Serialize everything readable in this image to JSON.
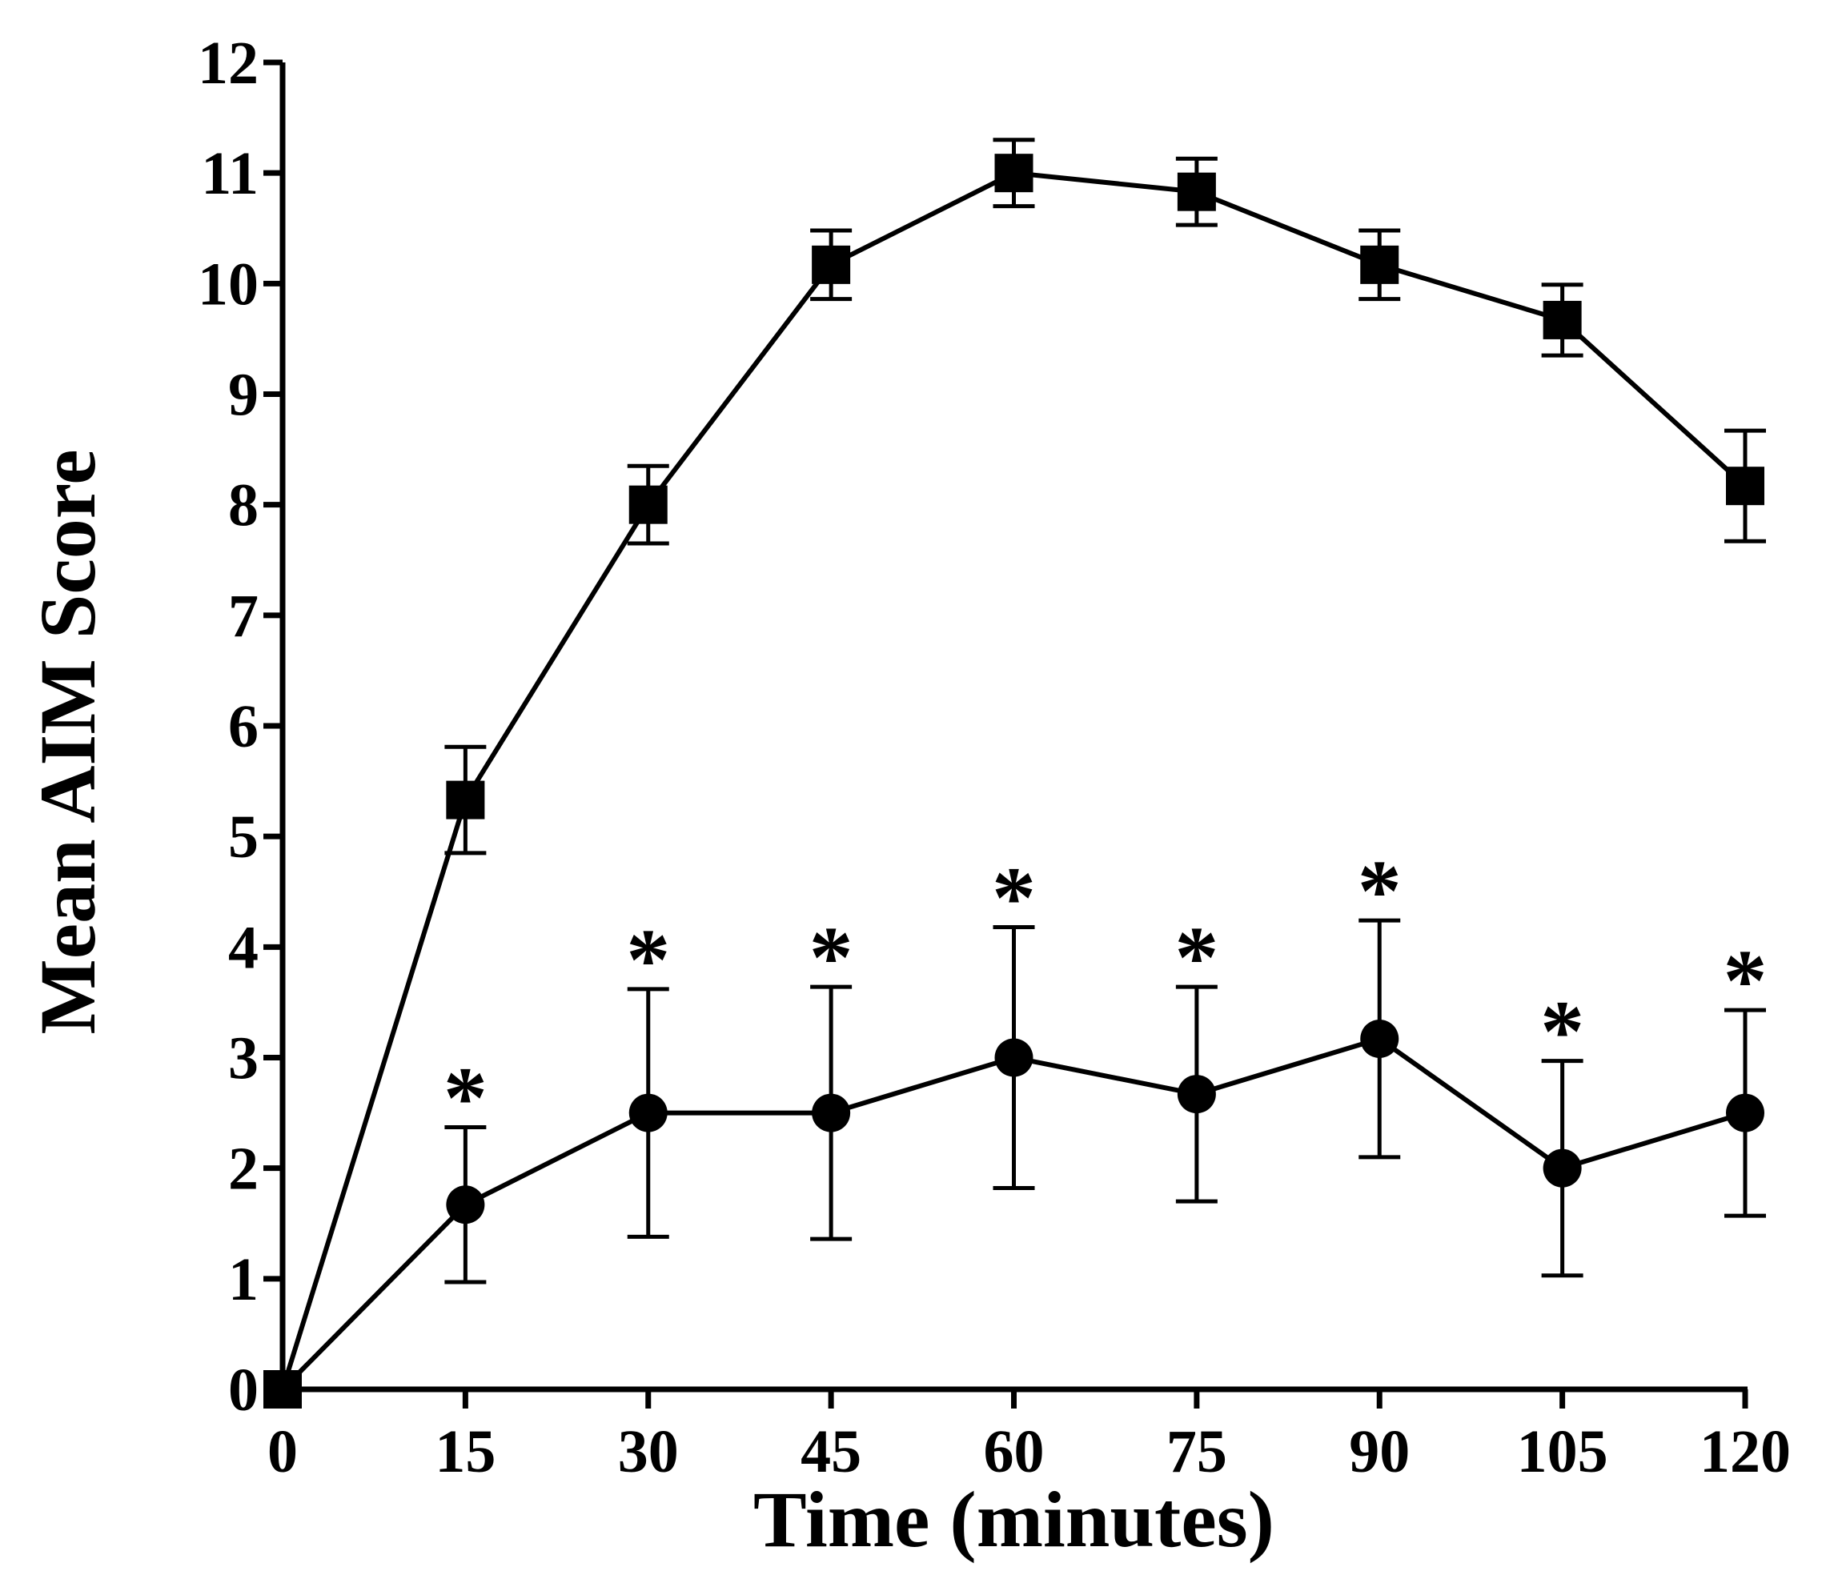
{
  "chart_data": {
    "type": "line",
    "title": "",
    "xlabel": "Time (minutes)",
    "ylabel": "Mean AIM Score",
    "xlim": [
      0,
      120
    ],
    "ylim": [
      0,
      12
    ],
    "x_ticks": [
      "0",
      "15",
      "30",
      "45",
      "60",
      "75",
      "90",
      "105",
      "120"
    ],
    "y_ticks": [
      "0",
      "1",
      "2",
      "3",
      "4",
      "5",
      "6",
      "7",
      "8",
      "9",
      "10",
      "11",
      "12"
    ],
    "grid": false,
    "legend": "none",
    "x": [
      0,
      15,
      30,
      45,
      60,
      75,
      90,
      105,
      120
    ],
    "series": [
      {
        "name": "Square marker series",
        "marker": "square",
        "values": [
          0,
          5.33,
          8.0,
          10.17,
          11.0,
          10.83,
          10.17,
          9.67,
          8.17
        ],
        "error": [
          0,
          0.48,
          0.35,
          0.31,
          0.3,
          0.3,
          0.31,
          0.32,
          0.5
        ]
      },
      {
        "name": "Circle marker series",
        "marker": "circle",
        "values": [
          0,
          1.67,
          2.5,
          2.5,
          3.0,
          2.67,
          3.17,
          2.0,
          2.5
        ],
        "error": [
          0,
          0.7,
          1.12,
          1.14,
          1.18,
          0.97,
          1.07,
          0.97,
          0.93
        ]
      }
    ],
    "annotations": [
      {
        "text": "*",
        "x": 15
      },
      {
        "text": "*",
        "x": 30
      },
      {
        "text": "*",
        "x": 45
      },
      {
        "text": "*",
        "x": 60
      },
      {
        "text": "*",
        "x": 75
      },
      {
        "text": "*",
        "x": 90
      },
      {
        "text": "*",
        "x": 105
      },
      {
        "text": "*",
        "x": 120
      }
    ]
  }
}
